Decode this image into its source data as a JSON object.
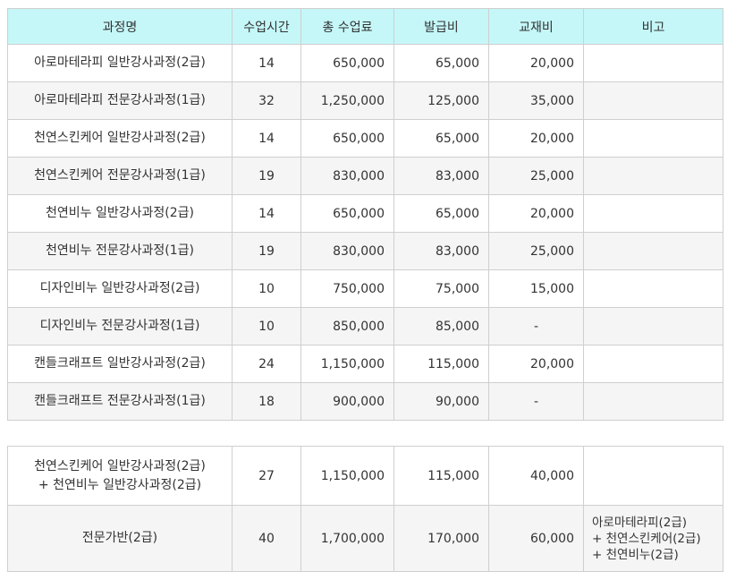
{
  "headers": [
    "과정명",
    "수업시간",
    "총 수업료",
    "발급비",
    "교재비",
    "비고"
  ],
  "courses": [
    {
      "name": "아로마테라피 일반강사과정(2급)",
      "hours": "14",
      "tuition": "650,000",
      "issue_fee": "65,000",
      "book_fee": "20,000",
      "note": ""
    },
    {
      "name": "아로마테라피 전문강사과정(1급)",
      "hours": "32",
      "tuition": "1,250,000",
      "issue_fee": "125,000",
      "book_fee": "35,000",
      "note": ""
    },
    {
      "name": "천연스킨케어 일반강사과정(2급)",
      "hours": "14",
      "tuition": "650,000",
      "issue_fee": "65,000",
      "book_fee": "20,000",
      "note": ""
    },
    {
      "name": "천연스킨케어 전문강사과정(1급)",
      "hours": "19",
      "tuition": "830,000",
      "issue_fee": "83,000",
      "book_fee": "25,000",
      "note": ""
    },
    {
      "name": "천연비누 일반강사과정(2급)",
      "hours": "14",
      "tuition": "650,000",
      "issue_fee": "65,000",
      "book_fee": "20,000",
      "note": ""
    },
    {
      "name": "천연비누 전문강사과정(1급)",
      "hours": "19",
      "tuition": "830,000",
      "issue_fee": "83,000",
      "book_fee": "25,000",
      "note": ""
    },
    {
      "name": "디자인비누 일반강사과정(2급)",
      "hours": "10",
      "tuition": "750,000",
      "issue_fee": "75,000",
      "book_fee": "15,000",
      "note": ""
    },
    {
      "name": "디자인비누 전문강사과정(1급)",
      "hours": "10",
      "tuition": "850,000",
      "issue_fee": "85,000",
      "book_fee": "-",
      "note": ""
    },
    {
      "name": "캔들크래프트 일반강사과정(2급)",
      "hours": "24",
      "tuition": "1,150,000",
      "issue_fee": "115,000",
      "book_fee": "20,000",
      "note": ""
    },
    {
      "name": "캔들크래프트 전문강사과정(1급)",
      "hours": "18",
      "tuition": "900,000",
      "issue_fee": "90,000",
      "book_fee": "-",
      "note": ""
    }
  ],
  "combos": [
    {
      "name": "천연스킨케어 일반강사과정(2급)\n+ 천연비누 일반강사과정(2급)",
      "hours": "27",
      "tuition": "1,150,000",
      "issue_fee": "115,000",
      "book_fee": "40,000",
      "note": ""
    },
    {
      "name": "전문가반(2급)",
      "hours": "40",
      "tuition": "1,700,000",
      "issue_fee": "170,000",
      "book_fee": "60,000",
      "note": "아로마테라피(2급)\n+ 천연스킨케어(2급)\n+ 천연비누(2급)"
    }
  ]
}
